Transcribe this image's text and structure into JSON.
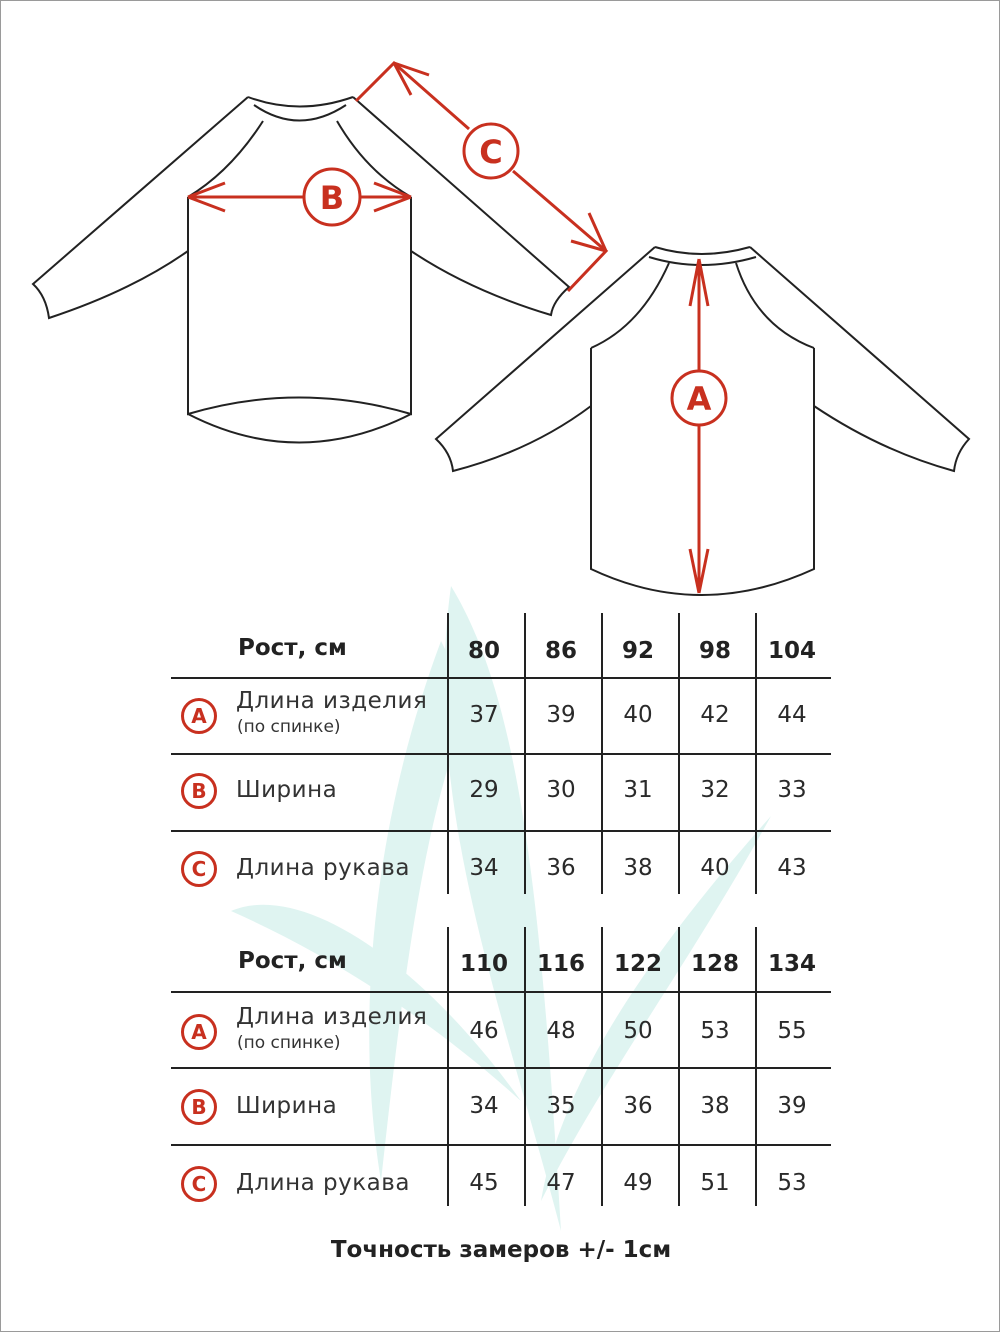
{
  "diagram": {
    "labels": {
      "length": "A",
      "width": "B",
      "sleeve": "C"
    },
    "colors": {
      "accent": "#c8301f",
      "outline": "#222222",
      "watermark": "#dff4f1"
    }
  },
  "tables": [
    {
      "header_label": "Рост, см",
      "sizes": [
        "80",
        "86",
        "92",
        "98",
        "104"
      ],
      "rows": [
        {
          "badge": "A",
          "label": "Длина изделия",
          "sublabel": "(по спинке)",
          "values": [
            "37",
            "39",
            "40",
            "42",
            "44"
          ]
        },
        {
          "badge": "B",
          "label": "Ширина",
          "values": [
            "29",
            "30",
            "31",
            "32",
            "33"
          ]
        },
        {
          "badge": "C",
          "label": "Длина рукава",
          "values": [
            "34",
            "36",
            "38",
            "40",
            "43"
          ]
        }
      ]
    },
    {
      "header_label": "Рост, см",
      "sizes": [
        "110",
        "116",
        "122",
        "128",
        "134"
      ],
      "rows": [
        {
          "badge": "A",
          "label": "Длина изделия",
          "sublabel": "(по спинке)",
          "values": [
            "46",
            "48",
            "50",
            "53",
            "55"
          ]
        },
        {
          "badge": "B",
          "label": "Ширина",
          "values": [
            "34",
            "35",
            "36",
            "38",
            "39"
          ]
        },
        {
          "badge": "C",
          "label": "Длина рукава",
          "values": [
            "45",
            "47",
            "49",
            "51",
            "53"
          ]
        }
      ]
    }
  ],
  "footer": "Точность замеров +/- 1см"
}
